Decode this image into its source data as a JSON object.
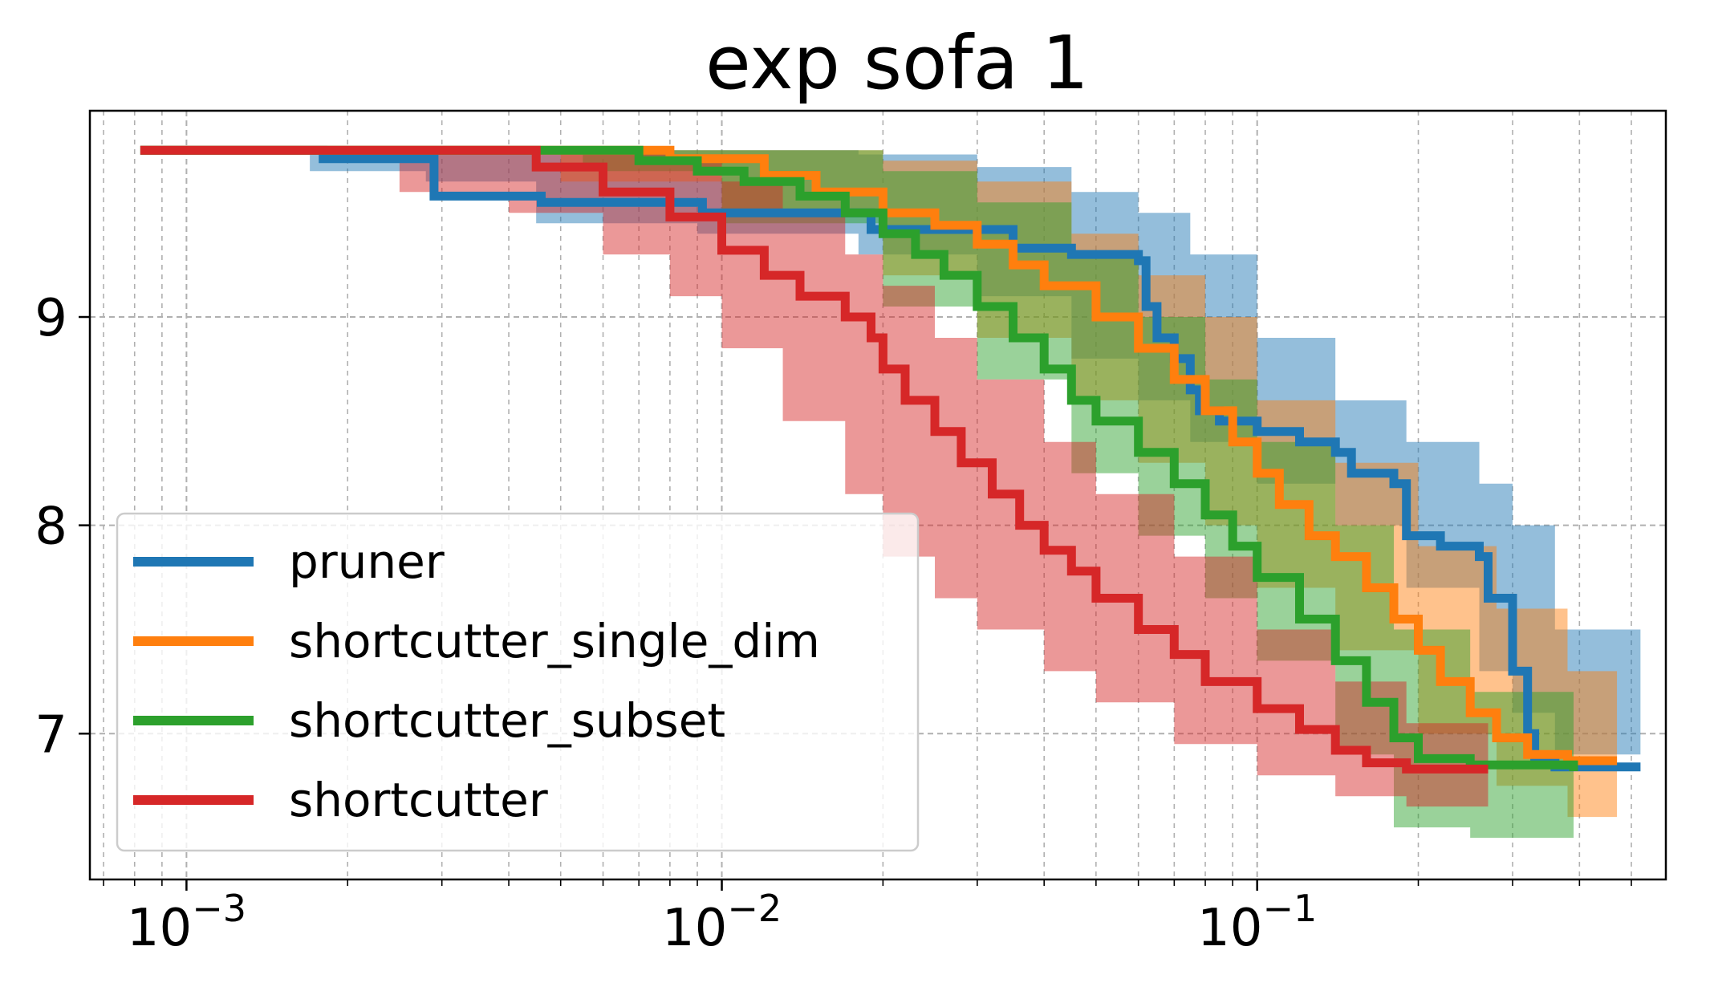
{
  "chart_data": {
    "type": "line",
    "title": "exp sofa 1",
    "xlabel": "",
    "ylabel": "",
    "xscale": "log",
    "xlim": [
      0.00066,
      0.58
    ],
    "ylim": [
      6.3,
      9.99
    ],
    "grid": true,
    "legend_position": "lower-left",
    "x_ticks": [
      {
        "base": "10",
        "exp": "−3",
        "value": 0.001
      },
      {
        "base": "10",
        "exp": "−2",
        "value": 0.01
      },
      {
        "base": "10",
        "exp": "−1",
        "value": 0.1
      }
    ],
    "y_ticks": [
      {
        "label": "7",
        "value": 7
      },
      {
        "label": "8",
        "value": 8
      },
      {
        "label": "9",
        "value": 9
      }
    ],
    "series": [
      {
        "name": "pruner",
        "color": "#1f77b4",
        "points": [
          [
            0.00082,
            9.8
          ],
          [
            0.0017,
            9.8
          ],
          [
            0.0018,
            9.76
          ],
          [
            0.0028,
            9.76
          ],
          [
            0.0029,
            9.58
          ],
          [
            0.0045,
            9.58
          ],
          [
            0.0046,
            9.55
          ],
          [
            0.009,
            9.55
          ],
          [
            0.0092,
            9.5
          ],
          [
            0.018,
            9.5
          ],
          [
            0.019,
            9.42
          ],
          [
            0.03,
            9.42
          ],
          [
            0.035,
            9.33
          ],
          [
            0.045,
            9.3
          ],
          [
            0.06,
            9.27
          ],
          [
            0.062,
            9.05
          ],
          [
            0.065,
            8.9
          ],
          [
            0.07,
            8.8
          ],
          [
            0.075,
            8.65
          ],
          [
            0.078,
            8.55
          ],
          [
            0.085,
            8.5
          ],
          [
            0.09,
            8.5
          ],
          [
            0.1,
            8.45
          ],
          [
            0.12,
            8.4
          ],
          [
            0.14,
            8.35
          ],
          [
            0.15,
            8.25
          ],
          [
            0.18,
            8.2
          ],
          [
            0.19,
            7.95
          ],
          [
            0.22,
            7.9
          ],
          [
            0.26,
            7.85
          ],
          [
            0.27,
            7.65
          ],
          [
            0.3,
            7.3
          ],
          [
            0.32,
            7.0
          ],
          [
            0.33,
            6.87
          ],
          [
            0.36,
            6.84
          ],
          [
            0.52,
            6.84
          ]
        ],
        "band": [
          [
            0.00082,
            9.8,
            9.8
          ],
          [
            0.0017,
            9.7,
            9.8
          ],
          [
            0.0028,
            9.65,
            9.8
          ],
          [
            0.0045,
            9.45,
            9.8
          ],
          [
            0.009,
            9.4,
            9.8
          ],
          [
            0.018,
            9.3,
            9.78
          ],
          [
            0.03,
            9.1,
            9.72
          ],
          [
            0.045,
            8.8,
            9.6
          ],
          [
            0.06,
            8.6,
            9.5
          ],
          [
            0.075,
            8.4,
            9.3
          ],
          [
            0.1,
            8.2,
            8.9
          ],
          [
            0.14,
            8.0,
            8.6
          ],
          [
            0.19,
            7.7,
            8.4
          ],
          [
            0.26,
            7.3,
            8.2
          ],
          [
            0.3,
            7.1,
            8.0
          ],
          [
            0.36,
            6.9,
            7.5
          ],
          [
            0.52,
            6.84,
            6.84
          ]
        ]
      },
      {
        "name": "shortcutter_single_dim",
        "color": "#ff7f0e",
        "points": [
          [
            0.00082,
            9.8
          ],
          [
            0.005,
            9.8
          ],
          [
            0.008,
            9.76
          ],
          [
            0.012,
            9.68
          ],
          [
            0.015,
            9.6
          ],
          [
            0.02,
            9.5
          ],
          [
            0.025,
            9.44
          ],
          [
            0.03,
            9.35
          ],
          [
            0.035,
            9.25
          ],
          [
            0.04,
            9.15
          ],
          [
            0.05,
            9.0
          ],
          [
            0.06,
            8.85
          ],
          [
            0.07,
            8.7
          ],
          [
            0.08,
            8.55
          ],
          [
            0.09,
            8.4
          ],
          [
            0.1,
            8.25
          ],
          [
            0.11,
            8.1
          ],
          [
            0.125,
            7.95
          ],
          [
            0.14,
            7.85
          ],
          [
            0.16,
            7.7
          ],
          [
            0.18,
            7.55
          ],
          [
            0.2,
            7.4
          ],
          [
            0.22,
            7.25
          ],
          [
            0.25,
            7.1
          ],
          [
            0.28,
            6.98
          ],
          [
            0.32,
            6.9
          ],
          [
            0.38,
            6.87
          ],
          [
            0.47,
            6.87
          ]
        ],
        "band": [
          [
            0.00082,
            9.8,
            9.8
          ],
          [
            0.005,
            9.65,
            9.8
          ],
          [
            0.01,
            9.5,
            9.8
          ],
          [
            0.02,
            9.2,
            9.75
          ],
          [
            0.03,
            8.9,
            9.65
          ],
          [
            0.045,
            8.6,
            9.4
          ],
          [
            0.06,
            8.3,
            9.2
          ],
          [
            0.08,
            8.0,
            9.0
          ],
          [
            0.1,
            7.7,
            8.6
          ],
          [
            0.14,
            7.4,
            8.3
          ],
          [
            0.2,
            7.0,
            7.9
          ],
          [
            0.28,
            6.75,
            7.6
          ],
          [
            0.38,
            6.6,
            7.3
          ],
          [
            0.47,
            6.6,
            7.3
          ]
        ]
      },
      {
        "name": "shortcutter_subset",
        "color": "#2ca02c",
        "points": [
          [
            0.00082,
            9.8
          ],
          [
            0.0055,
            9.8
          ],
          [
            0.007,
            9.75
          ],
          [
            0.009,
            9.7
          ],
          [
            0.011,
            9.65
          ],
          [
            0.014,
            9.58
          ],
          [
            0.017,
            9.5
          ],
          [
            0.02,
            9.4
          ],
          [
            0.023,
            9.3
          ],
          [
            0.026,
            9.2
          ],
          [
            0.03,
            9.05
          ],
          [
            0.035,
            8.9
          ],
          [
            0.04,
            8.75
          ],
          [
            0.045,
            8.6
          ],
          [
            0.05,
            8.5
          ],
          [
            0.06,
            8.35
          ],
          [
            0.07,
            8.2
          ],
          [
            0.08,
            8.05
          ],
          [
            0.09,
            7.9
          ],
          [
            0.1,
            7.75
          ],
          [
            0.12,
            7.55
          ],
          [
            0.14,
            7.35
          ],
          [
            0.16,
            7.15
          ],
          [
            0.18,
            6.98
          ],
          [
            0.2,
            6.88
          ],
          [
            0.25,
            6.85
          ],
          [
            0.39,
            6.82
          ]
        ],
        "band": [
          [
            0.00082,
            9.8,
            9.8
          ],
          [
            0.0055,
            9.7,
            9.8
          ],
          [
            0.01,
            9.45,
            9.8
          ],
          [
            0.02,
            9.05,
            9.7
          ],
          [
            0.03,
            8.7,
            9.55
          ],
          [
            0.045,
            8.25,
            9.3
          ],
          [
            0.06,
            7.95,
            9.0
          ],
          [
            0.08,
            7.65,
            8.7
          ],
          [
            0.1,
            7.35,
            8.4
          ],
          [
            0.14,
            6.9,
            8.0
          ],
          [
            0.18,
            6.55,
            7.5
          ],
          [
            0.25,
            6.5,
            7.2
          ],
          [
            0.39,
            6.5,
            7.1
          ]
        ]
      },
      {
        "name": "shortcutter",
        "color": "#d62728",
        "points": [
          [
            0.00082,
            9.8
          ],
          [
            0.0032,
            9.8
          ],
          [
            0.0045,
            9.72
          ],
          [
            0.006,
            9.6
          ],
          [
            0.008,
            9.48
          ],
          [
            0.01,
            9.32
          ],
          [
            0.012,
            9.2
          ],
          [
            0.014,
            9.1
          ],
          [
            0.017,
            9.0
          ],
          [
            0.019,
            8.9
          ],
          [
            0.02,
            8.75
          ],
          [
            0.022,
            8.6
          ],
          [
            0.025,
            8.45
          ],
          [
            0.028,
            8.3
          ],
          [
            0.032,
            8.15
          ],
          [
            0.036,
            8.0
          ],
          [
            0.04,
            7.88
          ],
          [
            0.045,
            7.78
          ],
          [
            0.05,
            7.65
          ],
          [
            0.06,
            7.5
          ],
          [
            0.07,
            7.38
          ],
          [
            0.08,
            7.25
          ],
          [
            0.1,
            7.12
          ],
          [
            0.12,
            7.02
          ],
          [
            0.14,
            6.92
          ],
          [
            0.16,
            6.86
          ],
          [
            0.19,
            6.83
          ],
          [
            0.27,
            6.83
          ]
        ],
        "band": [
          [
            0.00082,
            9.8,
            9.8
          ],
          [
            0.0025,
            9.6,
            9.8
          ],
          [
            0.004,
            9.5,
            9.8
          ],
          [
            0.006,
            9.3,
            9.8
          ],
          [
            0.008,
            9.1,
            9.75
          ],
          [
            0.01,
            8.85,
            9.65
          ],
          [
            0.013,
            8.5,
            9.5
          ],
          [
            0.017,
            8.15,
            9.3
          ],
          [
            0.02,
            7.85,
            9.15
          ],
          [
            0.025,
            7.65,
            8.9
          ],
          [
            0.03,
            7.5,
            8.7
          ],
          [
            0.04,
            7.3,
            8.4
          ],
          [
            0.05,
            7.15,
            8.15
          ],
          [
            0.07,
            6.95,
            7.85
          ],
          [
            0.1,
            6.8,
            7.5
          ],
          [
            0.14,
            6.7,
            7.25
          ],
          [
            0.19,
            6.65,
            7.05
          ],
          [
            0.27,
            6.65,
            7.0
          ]
        ]
      }
    ]
  }
}
